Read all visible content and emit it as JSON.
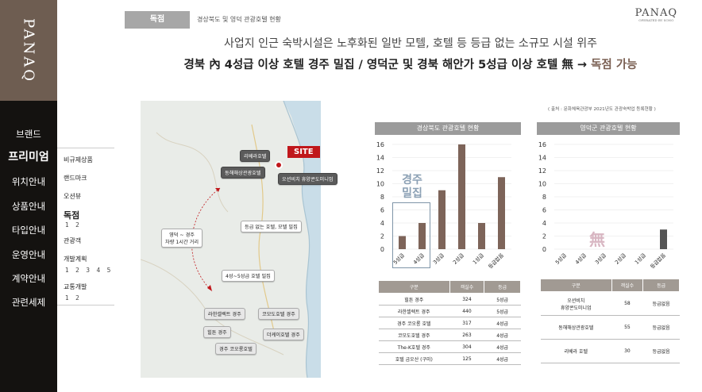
{
  "sidebar": {
    "logo": "PANAQ",
    "nav": [
      "브랜드",
      "프리미엄",
      "위치안내",
      "상품안내",
      "타입안내",
      "운영안내",
      "계약안내",
      "관련세제"
    ],
    "active_index": 1
  },
  "submenu": {
    "items": [
      {
        "label": "비규제상품",
        "bold": false,
        "numbers": ""
      },
      {
        "label": "랜드마크",
        "bold": false,
        "numbers": ""
      },
      {
        "label": "오션뷰",
        "bold": false,
        "numbers": ""
      },
      {
        "label": "독점",
        "bold": true,
        "numbers": "1 2"
      },
      {
        "label": "관광객",
        "bold": false,
        "numbers": ""
      },
      {
        "label": "개발계획",
        "bold": false,
        "numbers": "1 2 3 4 5"
      },
      {
        "label": "교통개발",
        "bold": false,
        "numbers": "1 2"
      }
    ]
  },
  "header": {
    "tag": "독점",
    "breadcrumb": "경상북도 및 영덕 관광호텔 현황",
    "brand": "PANAQ",
    "brand_sub": "OPERATED BY SONO"
  },
  "headline": {
    "line1": "사업지 인근 숙박시설은 노후화된 일반 모텔, 호텔 등 등급 없는 소규모 시설 위주",
    "line2_main": "경북 內 4성급 이상 호텔 경주 밀집 / 영덕군 및 경북 해안가 5성급 이상 호텔 無 ",
    "line2_arrow": "→",
    "line2_accent": " 독점 가능"
  },
  "map": {
    "site": "SITE",
    "labels": [
      {
        "text": "리베라호텔",
        "style": "dark"
      },
      {
        "text": "동해해상관광호텔",
        "style": "dark"
      },
      {
        "text": "오션비치 휴양콘도미니엄",
        "style": "dark"
      },
      {
        "text": "영덕 ~ 경주\n차량 1시간 거리",
        "style": "plain"
      },
      {
        "text": "등급 없는 호텔, 모텔 밀집",
        "style": "plain"
      },
      {
        "text": "4성~5성급 호텔 밀집",
        "style": "plain"
      },
      {
        "text": "라한셀렉트 경주",
        "style": "grey"
      },
      {
        "text": "코모도호텔 경주",
        "style": "grey"
      },
      {
        "text": "힐튼 경주",
        "style": "grey"
      },
      {
        "text": "더케이호텔 경주",
        "style": "grey"
      },
      {
        "text": "경주 코오롱호텔",
        "style": "grey"
      }
    ]
  },
  "source_note": "( 출처 : 문화체육관광부 2021년도 관광숙박업 등록현황 )",
  "chart_data": [
    {
      "type": "bar",
      "title": "경상북도 관광호텔 현황",
      "categories": [
        "5성급",
        "4성급",
        "3성급",
        "2성급",
        "1성급",
        "등급없음"
      ],
      "values": [
        2,
        4,
        9,
        16,
        4,
        11
      ],
      "ylim": [
        0,
        16
      ],
      "yticks": [
        0,
        2,
        4,
        6,
        8,
        10,
        12,
        14,
        16
      ],
      "annotation": "경주\n밀집",
      "color": "#7d6459"
    },
    {
      "type": "bar",
      "title": "영덕군 관광호텔 현황",
      "categories": [
        "5성급",
        "4성급",
        "3성급",
        "2성급",
        "1성급",
        "등급없음"
      ],
      "values": [
        0,
        0,
        0,
        0,
        0,
        3
      ],
      "ylim": [
        0,
        16
      ],
      "yticks": [
        0,
        2,
        4,
        6,
        8,
        10,
        12,
        14,
        16
      ],
      "annotation": "無",
      "color": "#555555"
    }
  ],
  "table_gb": {
    "headers": [
      "구분",
      "객실수",
      "등급"
    ],
    "rows": [
      [
        "힐튼 경주",
        "324",
        "5성급"
      ],
      [
        "라한셀렉트 경주",
        "440",
        "5성급"
      ],
      [
        "경주 코오롱 호텔",
        "317",
        "4성급"
      ],
      [
        "코모도호텔 경주",
        "263",
        "4성급"
      ],
      [
        "The-K호텔 경주",
        "304",
        "4성급"
      ],
      [
        "호텔 금오산 (구미)",
        "125",
        "4성급"
      ]
    ]
  },
  "table_yd": {
    "headers": [
      "구분",
      "객실수",
      "등급"
    ],
    "rows": [
      [
        "오션비치\n휴양콘도미니엄",
        "58",
        "등급없음"
      ],
      [
        "동해해상관광호텔",
        "55",
        "등급없음"
      ],
      [
        "리베라 호텔",
        "30",
        "등급없음"
      ]
    ]
  }
}
